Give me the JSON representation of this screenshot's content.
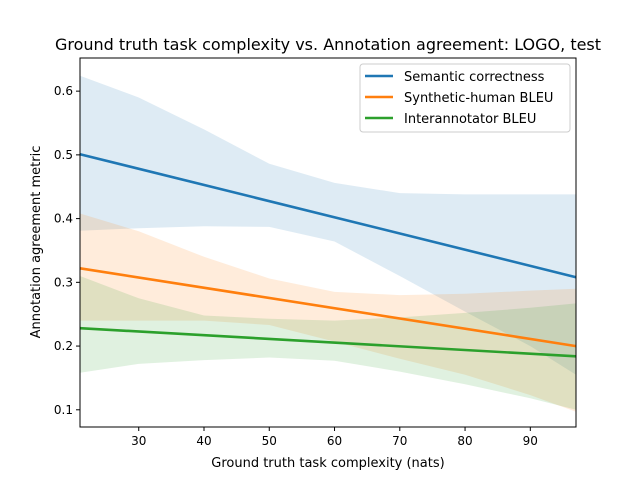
{
  "chart_data": {
    "type": "line",
    "title": "Ground truth task complexity vs. Annotation agreement: LOGO, test",
    "xlabel": "Ground truth task complexity (nats)",
    "ylabel": "Annotation agreement metric",
    "xlim": [
      21,
      97
    ],
    "ylim": [
      0.073,
      0.652
    ],
    "xticks": [
      30,
      40,
      50,
      60,
      70,
      80,
      90
    ],
    "yticks": [
      0.1,
      0.2,
      0.3,
      0.4,
      0.5,
      0.6
    ],
    "legend_position": "top-right",
    "series": [
      {
        "name": "Semantic correctness",
        "color": "#1f77b4",
        "band_color": "#1f77b4",
        "x": [
          21,
          97
        ],
        "y": [
          0.501,
          0.308
        ],
        "band_x": [
          21,
          30,
          40,
          50,
          60,
          70,
          80,
          90,
          97
        ],
        "band_lower": [
          0.381,
          0.385,
          0.388,
          0.387,
          0.364,
          0.31,
          0.254,
          0.2,
          0.155
        ],
        "band_upper": [
          0.624,
          0.59,
          0.54,
          0.486,
          0.456,
          0.44,
          0.438,
          0.438,
          0.438
        ]
      },
      {
        "name": "Synthetic-human BLEU",
        "color": "#ff7f0e",
        "band_color": "#ff7f0e",
        "x": [
          21,
          97
        ],
        "y": [
          0.322,
          0.2
        ],
        "band_x": [
          21,
          30,
          40,
          50,
          60,
          70,
          80,
          90,
          97
        ],
        "band_lower": [
          0.24,
          0.24,
          0.24,
          0.233,
          0.207,
          0.18,
          0.155,
          0.123,
          0.097
        ],
        "band_upper": [
          0.408,
          0.38,
          0.34,
          0.306,
          0.285,
          0.28,
          0.282,
          0.287,
          0.29
        ]
      },
      {
        "name": "Interannotator BLEU",
        "color": "#2ca02c",
        "band_color": "#2ca02c",
        "x": [
          21,
          97
        ],
        "y": [
          0.228,
          0.184
        ],
        "band_x": [
          21,
          30,
          40,
          50,
          60,
          70,
          80,
          90,
          97
        ],
        "band_lower": [
          0.158,
          0.172,
          0.178,
          0.182,
          0.177,
          0.16,
          0.14,
          0.118,
          0.1
        ],
        "band_upper": [
          0.31,
          0.275,
          0.248,
          0.243,
          0.24,
          0.245,
          0.252,
          0.26,
          0.267
        ]
      }
    ]
  }
}
